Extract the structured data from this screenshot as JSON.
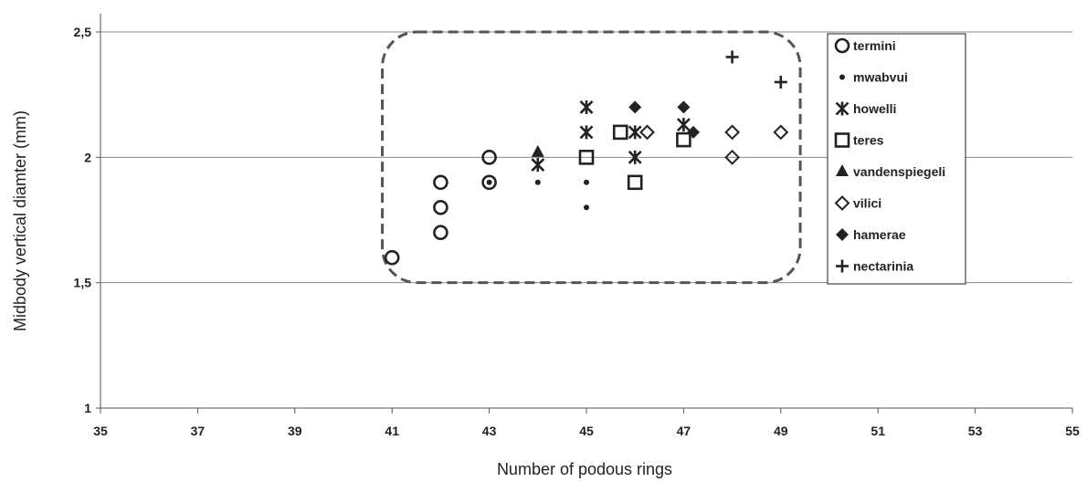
{
  "chart_data": {
    "type": "scatter",
    "title": "",
    "xlabel": "Number of podous rings",
    "ylabel": "Midbody vertical diamter  (mm)",
    "xlim": [
      35,
      55
    ],
    "ylim": [
      1,
      2.5
    ],
    "x_ticks": [
      "35",
      "37",
      "39",
      "41",
      "43",
      "45",
      "47",
      "49",
      "51",
      "53",
      "55"
    ],
    "y_ticks": [
      "1",
      "1,5",
      "2",
      "2,5"
    ],
    "grid": "horizontal",
    "legend_position": "right",
    "series": [
      {
        "name": "termini",
        "marker": "open-circle",
        "points": [
          [
            41,
            1.6
          ],
          [
            42,
            1.7
          ],
          [
            42,
            1.8
          ],
          [
            42,
            1.9
          ],
          [
            43,
            1.9
          ],
          [
            43,
            2.0
          ]
        ]
      },
      {
        "name": "mwabvui",
        "marker": "small-dot",
        "points": [
          [
            43,
            1.9
          ],
          [
            44,
            1.9
          ],
          [
            45,
            1.8
          ],
          [
            45,
            1.9
          ]
        ]
      },
      {
        "name": "howelli",
        "marker": "asterisk",
        "points": [
          [
            44,
            1.97
          ],
          [
            45,
            2.1
          ],
          [
            45,
            2.2
          ],
          [
            46,
            2.0
          ],
          [
            46,
            2.1
          ],
          [
            47,
            2.13
          ]
        ]
      },
      {
        "name": "teres",
        "marker": "open-square",
        "points": [
          [
            45,
            2.0
          ],
          [
            45.7,
            2.1
          ],
          [
            46,
            1.9
          ],
          [
            47,
            2.07
          ]
        ]
      },
      {
        "name": "vandenspiegeli",
        "marker": "filled-triangle",
        "points": [
          [
            44,
            2.02
          ]
        ]
      },
      {
        "name": "vilici",
        "marker": "open-diamond",
        "points": [
          [
            46.25,
            2.1
          ],
          [
            48,
            2.0
          ],
          [
            48,
            2.1
          ],
          [
            49,
            2.1
          ]
        ]
      },
      {
        "name": "hamerae",
        "marker": "filled-diamond",
        "points": [
          [
            46,
            2.2
          ],
          [
            47,
            2.2
          ],
          [
            47.2,
            2.1
          ]
        ]
      },
      {
        "name": "nectarinia",
        "marker": "plus",
        "points": [
          [
            48,
            2.4
          ],
          [
            49,
            2.3
          ]
        ]
      }
    ],
    "annotations": [
      {
        "type": "dashed-rounded-rectangle",
        "x_range": [
          40.8,
          49.4
        ],
        "y_range": [
          1.5,
          2.5
        ]
      }
    ]
  }
}
